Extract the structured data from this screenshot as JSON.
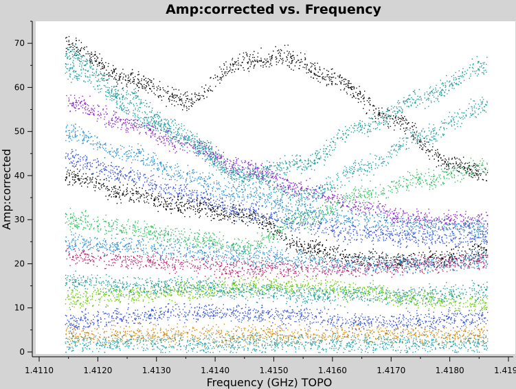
{
  "chart_data": {
    "type": "scatter",
    "title": "Amp:corrected vs. Frequency",
    "xlabel": "Frequency (GHz) TOPO",
    "ylabel": "Amp:corrected",
    "xlim": [
      1.411,
      1.419
    ],
    "ylim": [
      0,
      75
    ],
    "x_ticks": [
      "1.4110",
      "1.4120",
      "1.4130",
      "1.4140",
      "1.4150",
      "1.4160",
      "1.4170",
      "1.4180",
      "1.4190"
    ],
    "y_ticks": [
      "0",
      "10",
      "20",
      "30",
      "40",
      "50",
      "60",
      "70"
    ],
    "x_data_range": [
      1.41144,
      1.41864
    ],
    "grid": false,
    "legend": "none",
    "colors": [
      "#000000",
      "#1a9a9a",
      "#2a8fd0",
      "#3050d8",
      "#8a20c8",
      "#66cc00",
      "#30c060",
      "#d48a10",
      "#c02070",
      "#20a0a8"
    ],
    "series": [
      {
        "description_color": "#000000",
        "points": [
          [
            1.41144,
            70
          ],
          [
            1.4125,
            62
          ],
          [
            1.4135,
            57
          ],
          [
            1.4145,
            66
          ],
          [
            1.4152,
            67
          ],
          [
            1.416,
            62
          ],
          [
            1.417,
            53
          ],
          [
            1.418,
            43
          ],
          [
            1.41864,
            40
          ]
        ]
      },
      {
        "description_color": "#1a9a9a",
        "points": [
          [
            1.41144,
            68
          ],
          [
            1.4125,
            58
          ],
          [
            1.4135,
            48
          ],
          [
            1.4145,
            40
          ],
          [
            1.4155,
            43
          ],
          [
            1.4165,
            51
          ],
          [
            1.4175,
            58
          ],
          [
            1.41864,
            65
          ]
        ]
      },
      {
        "description_color": "#20a0a8",
        "points": [
          [
            1.41144,
            64
          ],
          [
            1.413,
            52
          ],
          [
            1.4145,
            40
          ],
          [
            1.4155,
            35
          ],
          [
            1.4165,
            42
          ],
          [
            1.4175,
            49
          ],
          [
            1.41864,
            56
          ]
        ]
      },
      {
        "description_color": "#8a20c8",
        "points": [
          [
            1.41144,
            57
          ],
          [
            1.4125,
            52
          ],
          [
            1.4135,
            47
          ],
          [
            1.4145,
            42
          ],
          [
            1.4155,
            37
          ],
          [
            1.4165,
            33
          ],
          [
            1.4175,
            30
          ],
          [
            1.41864,
            30
          ]
        ]
      },
      {
        "description_color": "#2a8fd0",
        "points": [
          [
            1.41144,
            50
          ],
          [
            1.4125,
            45
          ],
          [
            1.4135,
            40
          ],
          [
            1.4145,
            36
          ],
          [
            1.4155,
            32
          ],
          [
            1.4165,
            30
          ],
          [
            1.4175,
            29
          ],
          [
            1.41864,
            28
          ]
        ]
      },
      {
        "description_color": "#3050d8",
        "points": [
          [
            1.41144,
            44
          ],
          [
            1.4125,
            40
          ],
          [
            1.4135,
            36
          ],
          [
            1.4145,
            32
          ],
          [
            1.4155,
            29
          ],
          [
            1.4165,
            27
          ],
          [
            1.4175,
            26
          ],
          [
            1.41864,
            26
          ]
        ]
      },
      {
        "description_color": "#000000",
        "points": [
          [
            1.41144,
            40
          ],
          [
            1.4125,
            36
          ],
          [
            1.4135,
            33
          ],
          [
            1.4145,
            31
          ],
          [
            1.4155,
            24
          ],
          [
            1.4165,
            21
          ],
          [
            1.4175,
            21
          ],
          [
            1.41864,
            23
          ]
        ]
      },
      {
        "description_color": "#30c060",
        "points": [
          [
            1.41144,
            30
          ],
          [
            1.4125,
            28
          ],
          [
            1.4135,
            26
          ],
          [
            1.4145,
            24
          ],
          [
            1.4155,
            30
          ],
          [
            1.4165,
            36
          ],
          [
            1.4175,
            39
          ],
          [
            1.41864,
            42
          ]
        ]
      },
      {
        "description_color": "#c02070",
        "points": [
          [
            1.41144,
            22
          ],
          [
            1.4125,
            21
          ],
          [
            1.4135,
            20
          ],
          [
            1.4145,
            19
          ],
          [
            1.4155,
            19
          ],
          [
            1.4165,
            19
          ],
          [
            1.4175,
            20
          ],
          [
            1.41864,
            21
          ]
        ]
      },
      {
        "description_color": "#2a8fd0",
        "points": [
          [
            1.41144,
            25
          ],
          [
            1.4125,
            24
          ],
          [
            1.4135,
            23
          ],
          [
            1.4145,
            22
          ],
          [
            1.4155,
            21
          ],
          [
            1.4165,
            20
          ],
          [
            1.4175,
            20
          ],
          [
            1.41864,
            21
          ]
        ]
      },
      {
        "description_color": "#66cc00",
        "points": [
          [
            1.41144,
            12
          ],
          [
            1.4125,
            13
          ],
          [
            1.4135,
            14
          ],
          [
            1.4145,
            15
          ],
          [
            1.4155,
            15
          ],
          [
            1.4165,
            14
          ],
          [
            1.4175,
            12
          ],
          [
            1.41864,
            11
          ]
        ]
      },
      {
        "description_color": "#1a9a9a",
        "points": [
          [
            1.41144,
            16
          ],
          [
            1.4125,
            15
          ],
          [
            1.4135,
            15
          ],
          [
            1.4145,
            14
          ],
          [
            1.4155,
            13
          ],
          [
            1.4165,
            13
          ],
          [
            1.4175,
            13
          ],
          [
            1.41864,
            14
          ]
        ]
      },
      {
        "description_color": "#3050d8",
        "points": [
          [
            1.41144,
            7
          ],
          [
            1.4125,
            8
          ],
          [
            1.4135,
            9
          ],
          [
            1.4145,
            9
          ],
          [
            1.4155,
            8
          ],
          [
            1.4165,
            7
          ],
          [
            1.4175,
            7
          ],
          [
            1.41864,
            8
          ]
        ]
      },
      {
        "description_color": "#d48a10",
        "points": [
          [
            1.41144,
            4
          ],
          [
            1.4125,
            4
          ],
          [
            1.4135,
            4
          ],
          [
            1.4145,
            4
          ],
          [
            1.4155,
            4
          ],
          [
            1.4165,
            4
          ],
          [
            1.4175,
            4
          ],
          [
            1.41864,
            4
          ]
        ]
      },
      {
        "description_color": "#20a0a8",
        "points": [
          [
            1.41144,
            2
          ],
          [
            1.4125,
            2
          ],
          [
            1.4135,
            2
          ],
          [
            1.4145,
            2
          ],
          [
            1.4155,
            2
          ],
          [
            1.4165,
            2
          ],
          [
            1.4175,
            2
          ],
          [
            1.41864,
            2
          ]
        ]
      }
    ]
  }
}
